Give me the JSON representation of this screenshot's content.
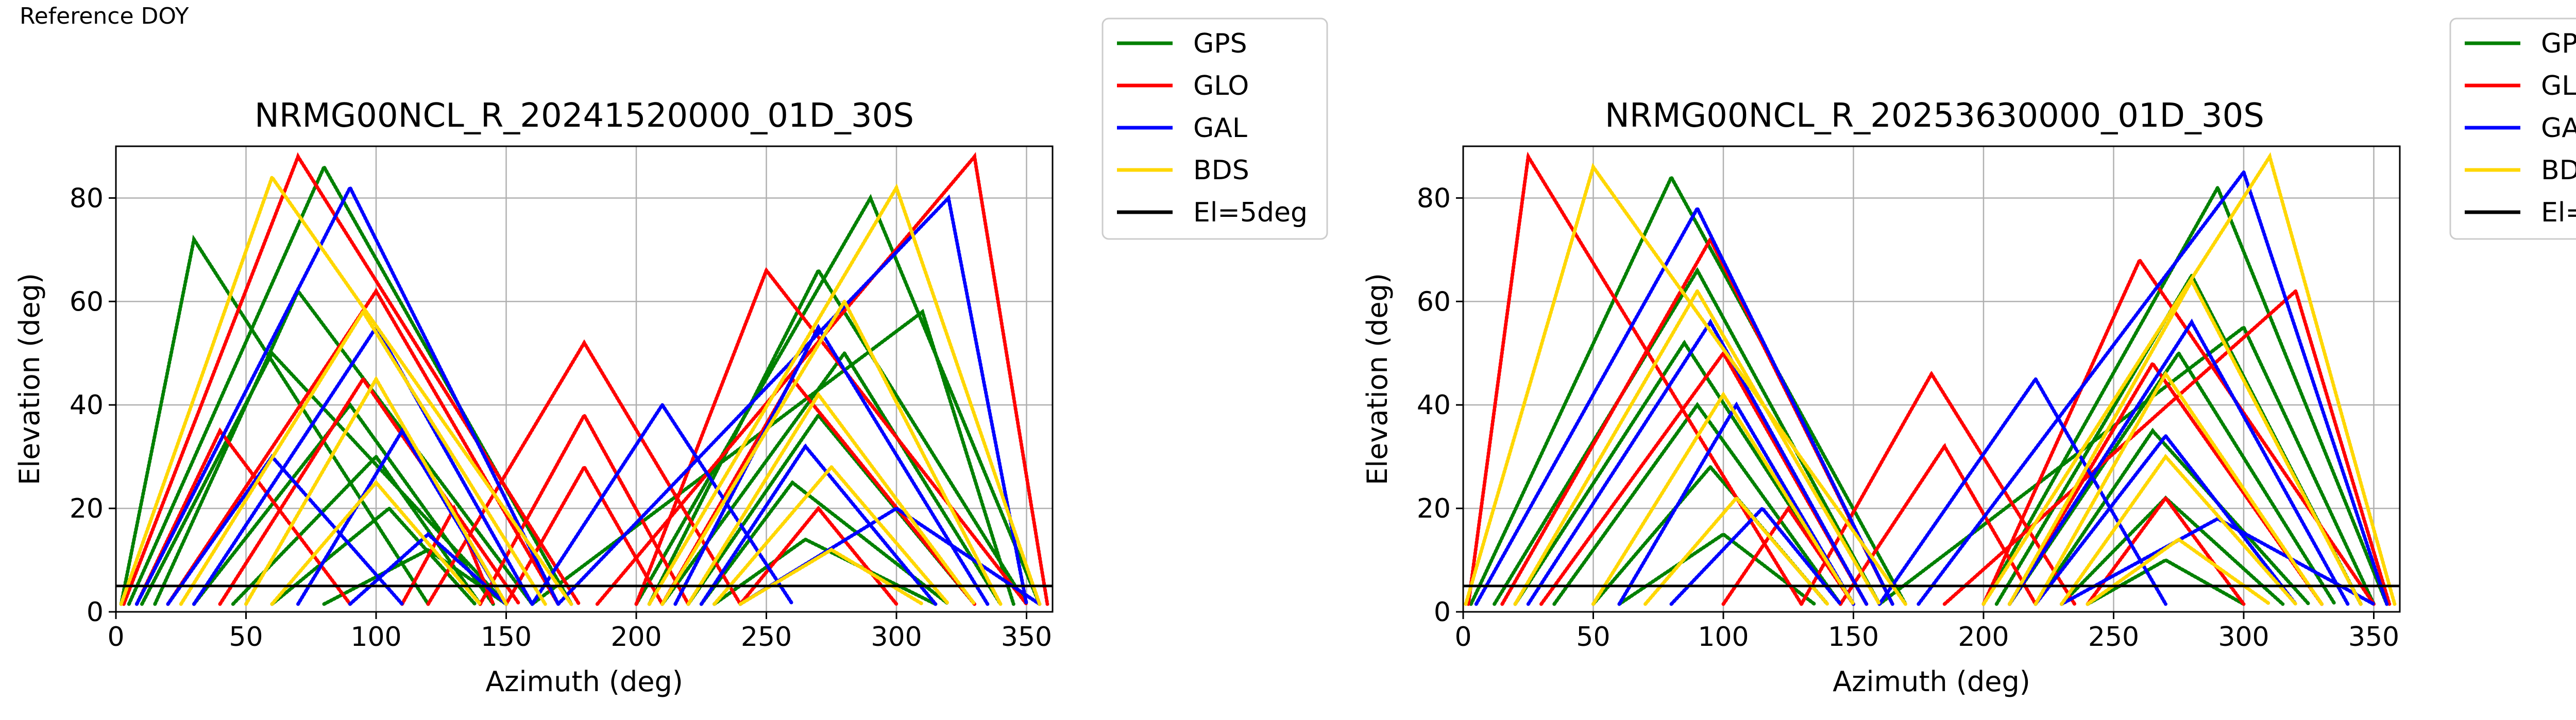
{
  "header": {
    "reference_label": "Reference DOY"
  },
  "colors": {
    "GPS": "#008000",
    "GLO": "#ff0000",
    "GAL": "#0000ff",
    "BDS": "#ffd700",
    "El=5deg": "#000000",
    "grid": "#b0b0b0"
  },
  "chart_data": [
    {
      "type": "scatter",
      "title": "NRMG00NCL_R_20241520000_01D_30S",
      "xlabel": "Azimuth (deg)",
      "ylabel": "Elevation (deg)",
      "xlim": [
        0,
        360
      ],
      "ylim": [
        0,
        90
      ],
      "xticks": [
        0,
        50,
        100,
        150,
        200,
        250,
        300,
        350
      ],
      "yticks": [
        0,
        20,
        40,
        60,
        80
      ],
      "grid": true,
      "legend_position": "outside-top-right",
      "legend": [
        "GPS",
        "GLO",
        "GAL",
        "BDS",
        "El=5deg"
      ],
      "reference_line": {
        "name": "El=5deg",
        "y": 5
      },
      "series": [
        {
          "name": "GPS",
          "passes": [
            {
              "az0": 5,
              "az1": 175,
              "peak_az": 80,
              "peak_el": 86
            },
            {
              "az0": 15,
              "az1": 160,
              "peak_az": 70,
              "peak_el": 62
            },
            {
              "az0": 10,
              "az1": 150,
              "peak_az": 60,
              "peak_el": 50
            },
            {
              "az0": 30,
              "az1": 145,
              "peak_az": 90,
              "peak_el": 40
            },
            {
              "az0": 45,
              "az1": 140,
              "peak_az": 100,
              "peak_el": 30
            },
            {
              "az0": 60,
              "az1": 138,
              "peak_az": 105,
              "peak_el": 20
            },
            {
              "az0": 2,
              "az1": 120,
              "peak_az": 30,
              "peak_el": 72
            },
            {
              "az0": 80,
              "az1": 150,
              "peak_az": 120,
              "peak_el": 12
            },
            {
              "az0": 205,
              "az1": 350,
              "peak_az": 270,
              "peak_el": 66
            },
            {
              "az0": 210,
              "az1": 340,
              "peak_az": 280,
              "peak_el": 50
            },
            {
              "az0": 220,
              "az1": 330,
              "peak_az": 270,
              "peak_el": 38
            },
            {
              "az0": 225,
              "az1": 320,
              "peak_az": 260,
              "peak_el": 25
            },
            {
              "az0": 200,
              "az1": 355,
              "peak_az": 290,
              "peak_el": 80
            },
            {
              "az0": 230,
              "az1": 315,
              "peak_az": 265,
              "peak_el": 14
            },
            {
              "az0": 160,
              "az1": 345,
              "peak_az": 310,
              "peak_el": 58
            }
          ]
        },
        {
          "name": "GLO",
          "passes": [
            {
              "az0": 3,
              "az1": 178,
              "peak_az": 70,
              "peak_el": 88
            },
            {
              "az0": 20,
              "az1": 170,
              "peak_az": 100,
              "peak_el": 62
            },
            {
              "az0": 40,
              "az1": 155,
              "peak_az": 95,
              "peak_el": 45
            },
            {
              "az0": 110,
              "az1": 145,
              "peak_az": 130,
              "peak_el": 20
            },
            {
              "az0": 120,
              "az1": 240,
              "peak_az": 180,
              "peak_el": 52
            },
            {
              "az0": 140,
              "az1": 220,
              "peak_az": 180,
              "peak_el": 38
            },
            {
              "az0": 150,
              "az1": 210,
              "peak_az": 180,
              "peak_el": 28
            },
            {
              "az0": 200,
              "az1": 350,
              "peak_az": 250,
              "peak_el": 66
            },
            {
              "az0": 210,
              "az1": 330,
              "peak_az": 260,
              "peak_el": 45
            },
            {
              "az0": 240,
              "az1": 300,
              "peak_az": 270,
              "peak_el": 20
            },
            {
              "az0": 185,
              "az1": 358,
              "peak_az": 330,
              "peak_el": 88
            },
            {
              "az0": 8,
              "az1": 90,
              "peak_az": 40,
              "peak_el": 35
            }
          ]
        },
        {
          "name": "GAL",
          "passes": [
            {
              "az0": 8,
              "az1": 170,
              "peak_az": 90,
              "peak_el": 82
            },
            {
              "az0": 30,
              "az1": 160,
              "peak_az": 100,
              "peak_el": 55
            },
            {
              "az0": 70,
              "az1": 150,
              "peak_az": 110,
              "peak_el": 35
            },
            {
              "az0": 20,
              "az1": 110,
              "peak_az": 60,
              "peak_el": 30
            },
            {
              "az0": 90,
              "az1": 150,
              "peak_az": 120,
              "peak_el": 15
            },
            {
              "az0": 170,
              "az1": 350,
              "peak_az": 320,
              "peak_el": 80
            },
            {
              "az0": 215,
              "az1": 335,
              "peak_az": 270,
              "peak_el": 55
            },
            {
              "az0": 225,
              "az1": 315,
              "peak_az": 265,
              "peak_el": 32
            },
            {
              "az0": 160,
              "az1": 260,
              "peak_az": 210,
              "peak_el": 40
            },
            {
              "az0": 240,
              "az1": 355,
              "peak_az": 300,
              "peak_el": 20
            }
          ]
        },
        {
          "name": "BDS",
          "passes": [
            {
              "az0": 2,
              "az1": 175,
              "peak_az": 60,
              "peak_el": 84
            },
            {
              "az0": 25,
              "az1": 165,
              "peak_az": 95,
              "peak_el": 58
            },
            {
              "az0": 50,
              "az1": 150,
              "peak_az": 100,
              "peak_el": 45
            },
            {
              "az0": 60,
              "az1": 140,
              "peak_az": 100,
              "peak_el": 25
            },
            {
              "az0": 205,
              "az1": 355,
              "peak_az": 300,
              "peak_el": 82
            },
            {
              "az0": 210,
              "az1": 340,
              "peak_az": 280,
              "peak_el": 60
            },
            {
              "az0": 220,
              "az1": 330,
              "peak_az": 270,
              "peak_el": 42
            },
            {
              "az0": 230,
              "az1": 320,
              "peak_az": 275,
              "peak_el": 28
            },
            {
              "az0": 240,
              "az1": 310,
              "peak_az": 275,
              "peak_el": 12
            }
          ]
        }
      ]
    },
    {
      "type": "scatter",
      "title": "NRMG00NCL_R_20253630000_01D_30S",
      "xlabel": "Azimuth (deg)",
      "ylabel": "Elevation (deg)",
      "xlim": [
        0,
        360
      ],
      "ylim": [
        0,
        90
      ],
      "xticks": [
        0,
        50,
        100,
        150,
        200,
        250,
        300,
        350
      ],
      "yticks": [
        0,
        20,
        40,
        60,
        80
      ],
      "grid": true,
      "legend_position": "outside-top-right",
      "legend": [
        "GPS",
        "GLO",
        "GAL",
        "BDS",
        "El=5deg"
      ],
      "reference_line": {
        "name": "El=5deg",
        "y": 5
      },
      "series": [
        {
          "name": "GPS",
          "passes": [
            {
              "az0": 3,
              "az1": 170,
              "peak_az": 80,
              "peak_el": 84
            },
            {
              "az0": 12,
              "az1": 160,
              "peak_az": 90,
              "peak_el": 66
            },
            {
              "az0": 20,
              "az1": 150,
              "peak_az": 85,
              "peak_el": 52
            },
            {
              "az0": 35,
              "az1": 145,
              "peak_az": 90,
              "peak_el": 40
            },
            {
              "az0": 50,
              "az1": 140,
              "peak_az": 95,
              "peak_el": 28
            },
            {
              "az0": 60,
              "az1": 135,
              "peak_az": 100,
              "peak_el": 15
            },
            {
              "az0": 200,
              "az1": 355,
              "peak_az": 290,
              "peak_el": 82
            },
            {
              "az0": 205,
              "az1": 345,
              "peak_az": 280,
              "peak_el": 65
            },
            {
              "az0": 210,
              "az1": 335,
              "peak_az": 275,
              "peak_el": 50
            },
            {
              "az0": 220,
              "az1": 325,
              "peak_az": 265,
              "peak_el": 35
            },
            {
              "az0": 230,
              "az1": 315,
              "peak_az": 270,
              "peak_el": 22
            },
            {
              "az0": 240,
              "az1": 300,
              "peak_az": 270,
              "peak_el": 10
            },
            {
              "az0": 160,
              "az1": 350,
              "peak_az": 300,
              "peak_el": 55
            }
          ]
        },
        {
          "name": "GLO",
          "passes": [
            {
              "az0": 2,
              "az1": 130,
              "peak_az": 25,
              "peak_el": 88
            },
            {
              "az0": 15,
              "az1": 165,
              "peak_az": 95,
              "peak_el": 72
            },
            {
              "az0": 30,
              "az1": 155,
              "peak_az": 100,
              "peak_el": 50
            },
            {
              "az0": 100,
              "az1": 150,
              "peak_az": 125,
              "peak_el": 20
            },
            {
              "az0": 130,
              "az1": 235,
              "peak_az": 180,
              "peak_el": 46
            },
            {
              "az0": 145,
              "az1": 220,
              "peak_az": 185,
              "peak_el": 32
            },
            {
              "az0": 200,
              "az1": 350,
              "peak_az": 260,
              "peak_el": 68
            },
            {
              "az0": 210,
              "az1": 330,
              "peak_az": 265,
              "peak_el": 48
            },
            {
              "az0": 240,
              "az1": 300,
              "peak_az": 270,
              "peak_el": 22
            },
            {
              "az0": 185,
              "az1": 356,
              "peak_az": 320,
              "peak_el": 62
            }
          ]
        },
        {
          "name": "GAL",
          "passes": [
            {
              "az0": 5,
              "az1": 165,
              "peak_az": 90,
              "peak_el": 78
            },
            {
              "az0": 25,
              "az1": 155,
              "peak_az": 95,
              "peak_el": 56
            },
            {
              "az0": 60,
              "az1": 150,
              "peak_az": 105,
              "peak_el": 40
            },
            {
              "az0": 80,
              "az1": 145,
              "peak_az": 115,
              "peak_el": 20
            },
            {
              "az0": 175,
              "az1": 355,
              "peak_az": 300,
              "peak_el": 85
            },
            {
              "az0": 210,
              "az1": 340,
              "peak_az": 280,
              "peak_el": 56
            },
            {
              "az0": 220,
              "az1": 320,
              "peak_az": 270,
              "peak_el": 34
            },
            {
              "az0": 160,
              "az1": 270,
              "peak_az": 220,
              "peak_el": 45
            },
            {
              "az0": 230,
              "az1": 350,
              "peak_az": 290,
              "peak_el": 18
            }
          ]
        },
        {
          "name": "BDS",
          "passes": [
            {
              "az0": 1,
              "az1": 170,
              "peak_az": 50,
              "peak_el": 86
            },
            {
              "az0": 20,
              "az1": 160,
              "peak_az": 90,
              "peak_el": 62
            },
            {
              "az0": 50,
              "az1": 150,
              "peak_az": 100,
              "peak_el": 42
            },
            {
              "az0": 70,
              "az1": 140,
              "peak_az": 105,
              "peak_el": 22
            },
            {
              "az0": 200,
              "az1": 358,
              "peak_az": 310,
              "peak_el": 88
            },
            {
              "az0": 210,
              "az1": 345,
              "peak_az": 280,
              "peak_el": 64
            },
            {
              "az0": 220,
              "az1": 330,
              "peak_az": 270,
              "peak_el": 46
            },
            {
              "az0": 230,
              "az1": 320,
              "peak_az": 270,
              "peak_el": 30
            },
            {
              "az0": 240,
              "az1": 310,
              "peak_az": 275,
              "peak_el": 14
            }
          ]
        }
      ]
    }
  ]
}
